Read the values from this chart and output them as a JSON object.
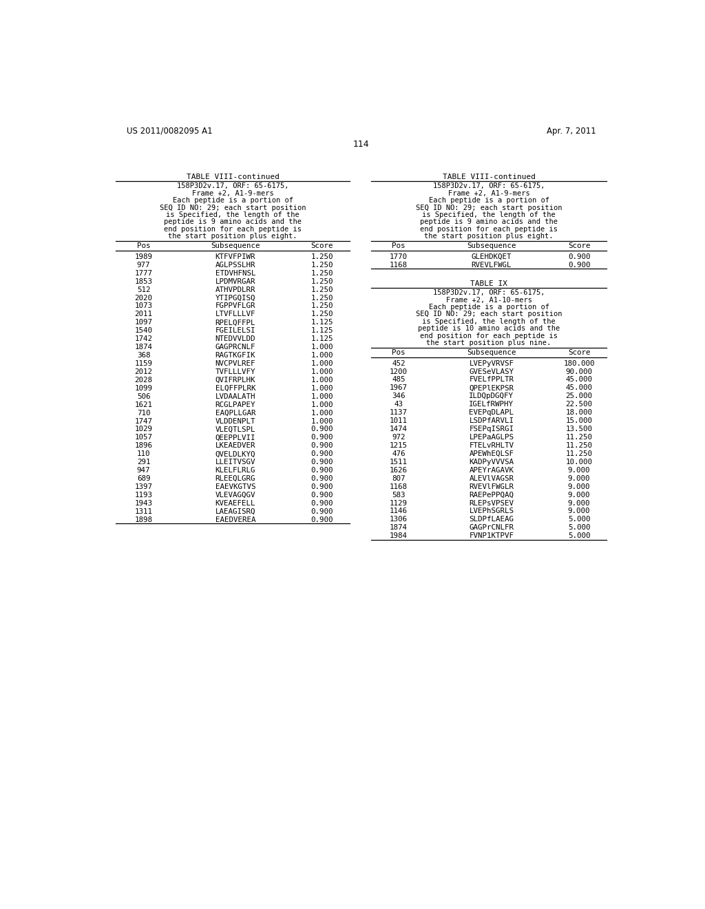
{
  "header_left": "US 2011/0082095 A1",
  "header_right": "Apr. 7, 2011",
  "page_number": "114",
  "left_table": {
    "title": "TABLE VIII-continued",
    "subtitle_lines": [
      "158P3D2v.17, ORF: 65-6175,",
      "Frame +2, A1-9-mers",
      "Each peptide is a portion of",
      "SEQ ID NO: 29; each start position",
      "is Specified, the length of the",
      "peptide is 9 amino acids and the",
      "end position for each peptide is",
      "the start position plus eight."
    ],
    "col_headers": [
      "Pos",
      "Subsequence",
      "Score"
    ],
    "rows": [
      [
        "1989",
        "KTFVFPIWR",
        "1.250"
      ],
      [
        "977",
        "AGLPSSLHR",
        "1.250"
      ],
      [
        "1777",
        "ETDVHFNSL",
        "1.250"
      ],
      [
        "1853",
        "LPDMVRGAR",
        "1.250"
      ],
      [
        "512",
        "ATHVPDLRR",
        "1.250"
      ],
      [
        "2020",
        "YTIPGQISQ",
        "1.250"
      ],
      [
        "1073",
        "FGPPVFLGR",
        "1.250"
      ],
      [
        "2011",
        "LTVFLLLVF",
        "1.250"
      ],
      [
        "1097",
        "RPELQFFPL",
        "1.125"
      ],
      [
        "1540",
        "FGEILELSI",
        "1.125"
      ],
      [
        "1742",
        "NTEDVVLDD",
        "1.125"
      ],
      [
        "1874",
        "GAGPRCNLF",
        "1.000"
      ],
      [
        "368",
        "RAGTKGFIK",
        "1.000"
      ],
      [
        "1159",
        "NVCPVLREF",
        "1.000"
      ],
      [
        "2012",
        "TVFLLLVFY",
        "1.000"
      ],
      [
        "2028",
        "QVIFRPLHK",
        "1.000"
      ],
      [
        "1099",
        "ELQFFPLRK",
        "1.000"
      ],
      [
        "506",
        "LVDAALATH",
        "1.000"
      ],
      [
        "1621",
        "RCGLPAPEY",
        "1.000"
      ],
      [
        "710",
        "EAQPLLGAR",
        "1.000"
      ],
      [
        "1747",
        "VLDDENPLT",
        "1.000"
      ],
      [
        "1029",
        "VLEQTLSPL",
        "0.900"
      ],
      [
        "1057",
        "QEEPPLVII",
        "0.900"
      ],
      [
        "1896",
        "LKEAEDVER",
        "0.900"
      ],
      [
        "110",
        "QVELDLKYQ",
        "0.900"
      ],
      [
        "291",
        "LLEITVSGV",
        "0.900"
      ],
      [
        "947",
        "KLELFLRLG",
        "0.900"
      ],
      [
        "689",
        "RLEEQLGRG",
        "0.900"
      ],
      [
        "1397",
        "EAEVKGTVS",
        "0.900"
      ],
      [
        "1193",
        "VLEVAGQGV",
        "0.900"
      ],
      [
        "1943",
        "KVEAEFELL",
        "0.900"
      ],
      [
        "1311",
        "LAEAGISRQ",
        "0.900"
      ],
      [
        "1898",
        "EAEDVEREA",
        "0.900"
      ]
    ]
  },
  "right_table_1": {
    "title": "TABLE VIII-continued",
    "subtitle_lines": [
      "158P3D2v.17, ORF: 65-6175,",
      "Frame +2, A1-9-mers",
      "Each peptide is a portion of",
      "SEQ ID NO: 29; each start position",
      "is Specified, the length of the",
      "peptide is 9 amino acids and the",
      "end position for each peptide is",
      "the start position plus eight."
    ],
    "col_headers": [
      "Pos",
      "Subsequence",
      "Score"
    ],
    "rows": [
      [
        "1770",
        "GLEHDKQET",
        "0.900"
      ],
      [
        "1168",
        "RVEVLFWGL",
        "0.900"
      ]
    ]
  },
  "right_table_2": {
    "title": "TABLE IX",
    "subtitle_lines": [
      "158P3D2v.17, ORF: 65-6175,",
      "Frame +2, A1-10-mers",
      "Each peptide is a portion of",
      "SEQ ID NO: 29; each start position",
      "is Specified, the length of the",
      "peptide is 10 amino acids and the",
      "end position for each peptide is",
      "the start position plus nine."
    ],
    "col_headers": [
      "Pos",
      "Subsequence",
      "Score"
    ],
    "rows": [
      [
        "452",
        "LVEPyVRVSF",
        "180.000"
      ],
      [
        "1200",
        "GVESeVLASY",
        "90.000"
      ],
      [
        "485",
        "FVELfPPLTR",
        "45.000"
      ],
      [
        "1967",
        "QPEPlEKPSR",
        "45.000"
      ],
      [
        "346",
        "ILDQpDGQFY",
        "25.000"
      ],
      [
        "43",
        "IGELfRWPHY",
        "22.500"
      ],
      [
        "1137",
        "EVEPqDLAPL",
        "18.000"
      ],
      [
        "1011",
        "LSDPfARVLI",
        "15.000"
      ],
      [
        "1474",
        "FSEPqISRGI",
        "13.500"
      ],
      [
        "972",
        "LPEPaAGLPS",
        "11.250"
      ],
      [
        "1215",
        "FTELvRHLTV",
        "11.250"
      ],
      [
        "476",
        "APEWhEQLSF",
        "11.250"
      ],
      [
        "1511",
        "KADPyVVVSA",
        "10.000"
      ],
      [
        "1626",
        "APEYrAGAVK",
        "9.000"
      ],
      [
        "807",
        "ALEVlVAGSR",
        "9.000"
      ],
      [
        "1168",
        "RVEVlFWGLR",
        "9.000"
      ],
      [
        "583",
        "RAEPePPQAQ",
        "9.000"
      ],
      [
        "1129",
        "RLEPsVPSEV",
        "9.000"
      ],
      [
        "1146",
        "LVEPhSGRLS",
        "9.000"
      ],
      [
        "1306",
        "SLDPfLAEAG",
        "5.000"
      ],
      [
        "1874",
        "GAGPrCNLFR",
        "5.000"
      ],
      [
        "1984",
        "FVNP1KTPVF",
        "5.000"
      ]
    ]
  },
  "bg_color": "#ffffff",
  "text_color": "#000000"
}
